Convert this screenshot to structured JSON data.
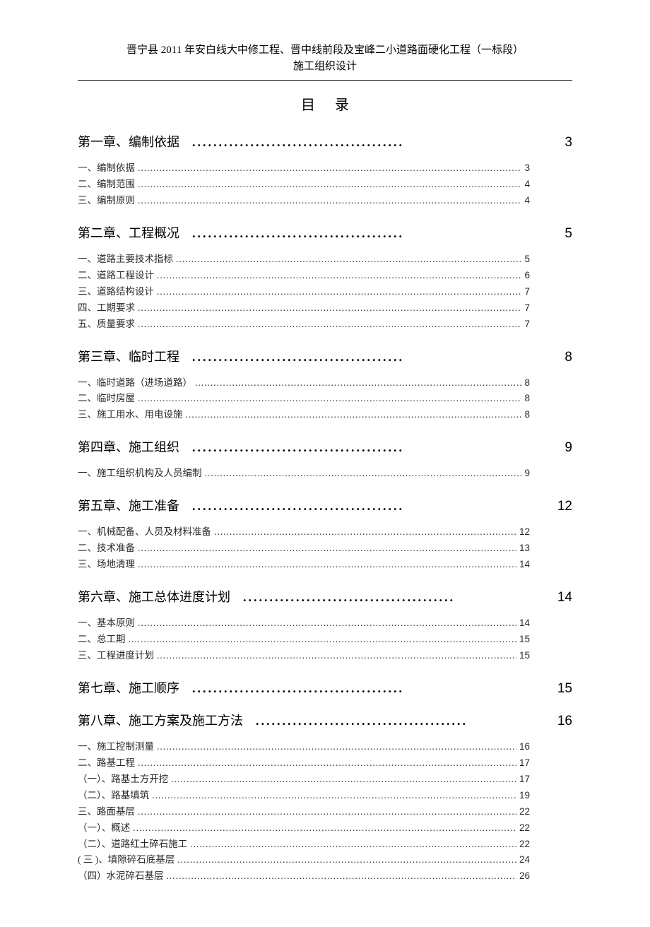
{
  "header": {
    "line1": "晋宁县 2011 年安白线大中修工程、晋中线前段及宝峰二小道路面硬化工程（一标段）",
    "line2": "施工组织设计"
  },
  "toc_title": "目录",
  "chapters": [
    {
      "title": "第一章、编制依据",
      "page": "3",
      "entries": [
        {
          "label": "一、编制依据",
          "page": "3"
        },
        {
          "label": "二、编制范围",
          "page": "4"
        },
        {
          "label": "三、编制原则",
          "page": "4"
        }
      ]
    },
    {
      "title": "第二章、工程概况",
      "page": "5",
      "entries": [
        {
          "label": "一、道路主要技术指标",
          "page": "5"
        },
        {
          "label": "二、道路工程设计",
          "page": "6"
        },
        {
          "label": "三、道路结构设计",
          "page": "7"
        },
        {
          "label": "四、工期要求",
          "page": "7"
        },
        {
          "label": "五、质量要求",
          "page": "7"
        }
      ]
    },
    {
      "title": "第三章、临时工程",
      "page": "8",
      "entries": [
        {
          "label": "一、临时道路（进场道路）",
          "page": "8"
        },
        {
          "label": "二、临时房屋",
          "page": "8"
        },
        {
          "label": "三、施工用水、用电设施",
          "page": "8"
        }
      ]
    },
    {
      "title": "第四章、施工组织",
      "page": "9",
      "entries": [
        {
          "label": "一、施工组织机构及人员编制",
          "page": "9"
        }
      ]
    },
    {
      "title": "第五章、施工准备",
      "page": "12",
      "entries": [
        {
          "label": "一、机械配备、人员及材料准备",
          "page": "12"
        },
        {
          "label": "二、技术准备",
          "page": "13"
        },
        {
          "label": "三、场地清理",
          "page": "14"
        }
      ]
    },
    {
      "title": "第六章、施工总体进度计划",
      "page": "14",
      "entries": [
        {
          "label": "一、基本原则",
          "page": "14"
        },
        {
          "label": "二、总工期",
          "page": "15"
        },
        {
          "label": "三、工程进度计划",
          "page": "15"
        }
      ]
    },
    {
      "title": "第七章、施工顺序",
      "page": "15",
      "entries": []
    },
    {
      "title": "第八章、施工方案及施工方法",
      "page": "16",
      "entries": [
        {
          "label": "一、施工控制测量",
          "page": "16"
        },
        {
          "label": "二、路基工程",
          "page": "17"
        },
        {
          "label": "（一）、路基土方开挖",
          "page": "17"
        },
        {
          "label": "（二）、路基填筑",
          "page": "19"
        },
        {
          "label": "三、路面基层",
          "page": "22"
        },
        {
          "label": "（一）、概述",
          "page": "22"
        },
        {
          "label": "（二）、道路红土碎石施工",
          "page": "22"
        },
        {
          "label": "( 三 )、填隙碎石底基层",
          "page": "24"
        },
        {
          "label": "（四）水泥碎石基层",
          "page": "26"
        }
      ]
    }
  ],
  "style": {
    "chapter_dots": "........................................",
    "entry_dots": "......................................................................................................................................................................................"
  }
}
